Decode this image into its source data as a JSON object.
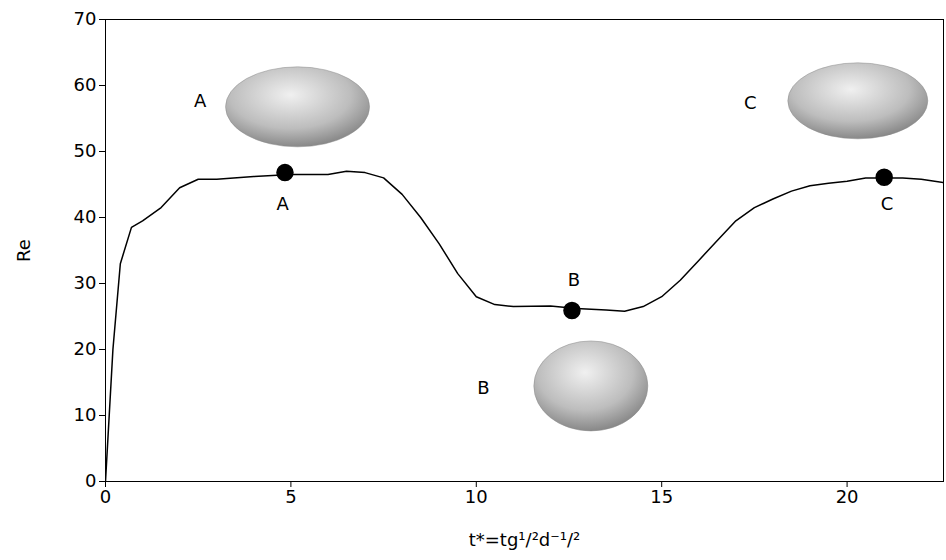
{
  "chart_data": {
    "type": "line",
    "x_label": "t*=tg¹/²d⁻¹/²",
    "y_label": "Re",
    "xlim": [
      0,
      22.6
    ],
    "ylim": [
      0,
      70
    ],
    "xticks": [
      0,
      5,
      10,
      15,
      20
    ],
    "yticks": [
      0,
      10,
      20,
      30,
      40,
      50,
      60,
      70
    ],
    "series": [
      {
        "name": "Re",
        "color": "#000000",
        "x": [
          0,
          0.2,
          0.4,
          0.7,
          1,
          1.5,
          2,
          2.5,
          3,
          4,
          5,
          6,
          6.5,
          7,
          7.5,
          8,
          8.5,
          9,
          9.5,
          10,
          10.5,
          11,
          12,
          12.7,
          13.5,
          14,
          14.5,
          15,
          15.5,
          16,
          16.5,
          17,
          17.5,
          18,
          18.5,
          19,
          19.5,
          20,
          20.5,
          21,
          21.5,
          22,
          22.6
        ],
        "values": [
          0,
          20,
          33,
          38.5,
          39.5,
          41.5,
          44.5,
          45.8,
          45.8,
          46.2,
          46.5,
          46.5,
          47,
          46.8,
          46,
          43.5,
          40,
          36,
          31.5,
          28,
          26.8,
          26.5,
          26.6,
          26.2,
          26,
          25.8,
          26.5,
          28,
          30.5,
          33.5,
          36.5,
          39.5,
          41.5,
          42.8,
          44,
          44.8,
          45.2,
          45.5,
          46,
          46,
          46,
          45.8,
          45.3
        ]
      }
    ],
    "points": {
      "color": "#000000",
      "marker": "circle",
      "x": [
        4.84,
        12.58,
        21.0
      ],
      "values": [
        46.8,
        25.9,
        46.1
      ]
    },
    "annotations": [
      {
        "text": "A",
        "x": 4.78,
        "y": 42.0
      },
      {
        "text": "B",
        "x": 12.63,
        "y": 30.5
      },
      {
        "text": "C",
        "x": 21.08,
        "y": 42.0
      }
    ],
    "shape_labels": [
      {
        "text": "A",
        "x": 2.55,
        "y": 57.6
      },
      {
        "text": "B",
        "x": 10.19,
        "y": 14.1
      },
      {
        "text": "C",
        "x": 17.39,
        "y": 57.3
      }
    ]
  }
}
